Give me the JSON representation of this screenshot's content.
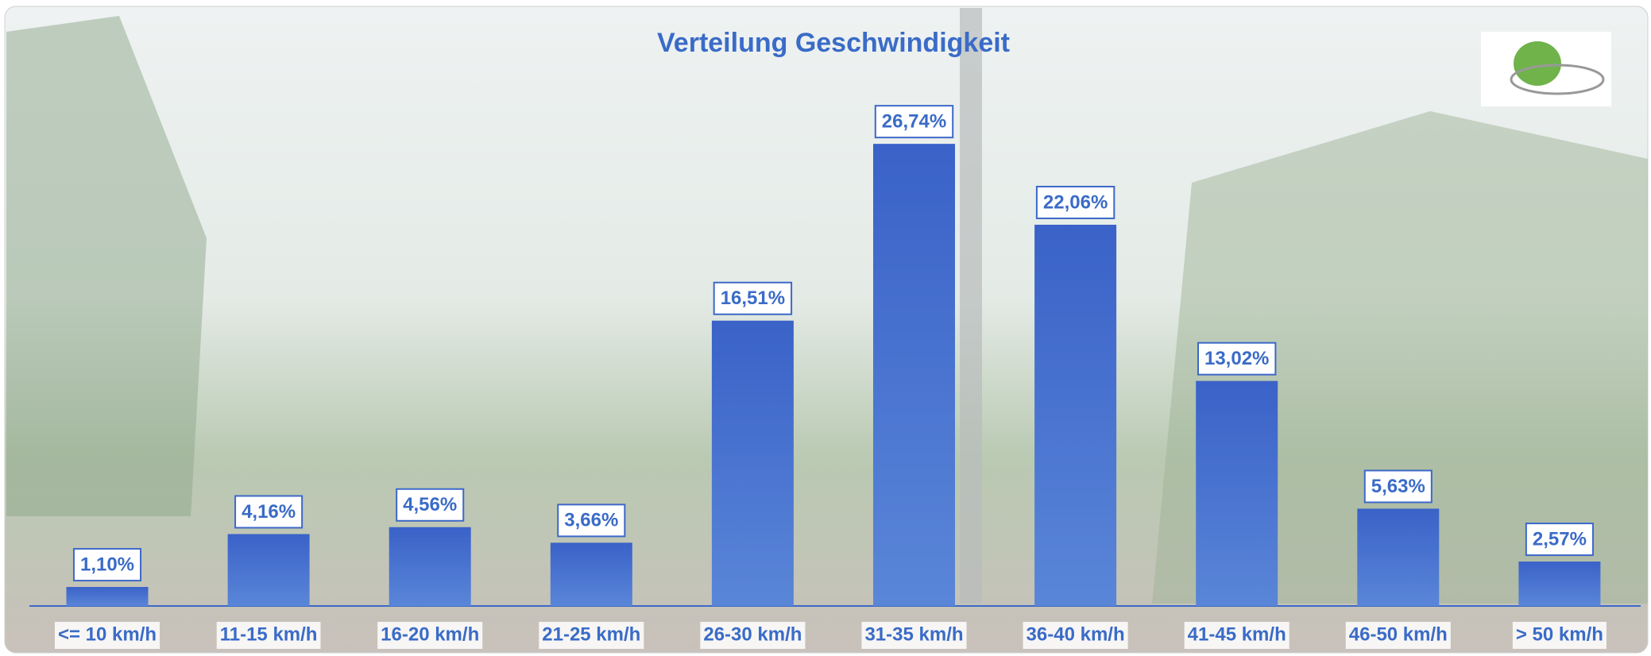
{
  "chart_data": {
    "type": "bar",
    "title": "Verteilung Geschwindigkeit",
    "categories": [
      "<= 10 km/h",
      "11-15 km/h",
      "16-20 km/h",
      "21-25 km/h",
      "26-30 km/h",
      "31-35 km/h",
      "36-40 km/h",
      "41-45 km/h",
      "46-50 km/h",
      "> 50 km/h"
    ],
    "values": [
      1.1,
      4.16,
      4.56,
      3.66,
      16.51,
      26.74,
      22.06,
      13.02,
      5.63,
      2.57
    ],
    "value_labels": [
      "1,10%",
      "4,16%",
      "4,56%",
      "3,66%",
      "16,51%",
      "26,74%",
      "22,06%",
      "13,02%",
      "5,63%",
      "2,57%"
    ],
    "color": "#3d68c9"
  }
}
